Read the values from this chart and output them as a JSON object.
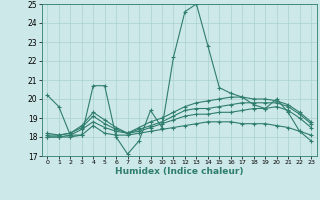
{
  "title": "",
  "xlabel": "Humidex (Indice chaleur)",
  "ylabel": "",
  "xlim": [
    -0.5,
    23.5
  ],
  "ylim": [
    17,
    25
  ],
  "yticks": [
    17,
    18,
    19,
    20,
    21,
    22,
    23,
    24,
    25
  ],
  "xticks": [
    0,
    1,
    2,
    3,
    4,
    5,
    6,
    7,
    8,
    9,
    10,
    11,
    12,
    13,
    14,
    15,
    16,
    17,
    18,
    19,
    20,
    21,
    22,
    23
  ],
  "bg_color": "#cde8e8",
  "line_color": "#2e7d6e",
  "grid_color": "#aad0d0",
  "lines": [
    {
      "x": [
        0,
        1,
        2,
        3,
        4,
        5,
        6,
        7,
        8,
        9,
        10,
        11,
        12,
        13,
        14,
        15,
        16,
        17,
        18,
        19,
        20,
        21,
        22,
        23
      ],
      "y": [
        20.2,
        19.6,
        18.1,
        18.1,
        20.7,
        20.7,
        18.0,
        17.1,
        17.8,
        19.4,
        18.5,
        22.2,
        24.6,
        25.0,
        22.8,
        20.6,
        20.3,
        20.1,
        19.7,
        19.5,
        20.0,
        19.3,
        18.3,
        17.8
      ]
    },
    {
      "x": [
        0,
        1,
        2,
        3,
        4,
        5,
        6,
        7,
        8,
        9,
        10,
        11,
        12,
        13,
        14,
        15,
        16,
        17,
        18,
        19,
        20,
        21,
        22,
        23
      ],
      "y": [
        18.0,
        18.0,
        18.0,
        18.1,
        18.6,
        18.2,
        18.1,
        18.1,
        18.2,
        18.3,
        18.4,
        18.5,
        18.6,
        18.7,
        18.8,
        18.8,
        18.8,
        18.7,
        18.7,
        18.7,
        18.6,
        18.5,
        18.3,
        18.1
      ]
    },
    {
      "x": [
        0,
        1,
        2,
        3,
        4,
        5,
        6,
        7,
        8,
        9,
        10,
        11,
        12,
        13,
        14,
        15,
        16,
        17,
        18,
        19,
        20,
        21,
        22,
        23
      ],
      "y": [
        18.0,
        18.0,
        18.1,
        18.4,
        18.8,
        18.5,
        18.3,
        18.2,
        18.3,
        18.5,
        18.7,
        18.9,
        19.1,
        19.2,
        19.2,
        19.3,
        19.3,
        19.4,
        19.5,
        19.5,
        19.6,
        19.4,
        19.0,
        18.5
      ]
    },
    {
      "x": [
        0,
        1,
        2,
        3,
        4,
        5,
        6,
        7,
        8,
        9,
        10,
        11,
        12,
        13,
        14,
        15,
        16,
        17,
        18,
        19,
        20,
        21,
        22,
        23
      ],
      "y": [
        18.1,
        18.1,
        18.2,
        18.5,
        19.1,
        18.7,
        18.4,
        18.2,
        18.4,
        18.6,
        18.8,
        19.1,
        19.4,
        19.5,
        19.5,
        19.6,
        19.7,
        19.8,
        19.8,
        19.8,
        19.8,
        19.6,
        19.2,
        18.7
      ]
    },
    {
      "x": [
        0,
        1,
        2,
        3,
        4,
        5,
        6,
        7,
        8,
        9,
        10,
        11,
        12,
        13,
        14,
        15,
        16,
        17,
        18,
        19,
        20,
        21,
        22,
        23
      ],
      "y": [
        18.2,
        18.1,
        18.2,
        18.6,
        19.3,
        18.9,
        18.5,
        18.2,
        18.5,
        18.8,
        19.0,
        19.3,
        19.6,
        19.8,
        19.9,
        20.0,
        20.1,
        20.1,
        20.0,
        20.0,
        19.9,
        19.7,
        19.3,
        18.8
      ]
    }
  ]
}
